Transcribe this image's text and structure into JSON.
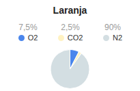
{
  "chart_data": {
    "type": "pie",
    "title": "Laranja",
    "categories": [
      "O2",
      "CO2",
      "N2"
    ],
    "values": [
      7.5,
      2.5,
      90
    ],
    "value_labels": [
      "7,5%",
      "2,5%",
      "90%"
    ],
    "colors": [
      "#4a86ec",
      "#fff2c2",
      "#d3dee2"
    ],
    "legend": "top"
  }
}
